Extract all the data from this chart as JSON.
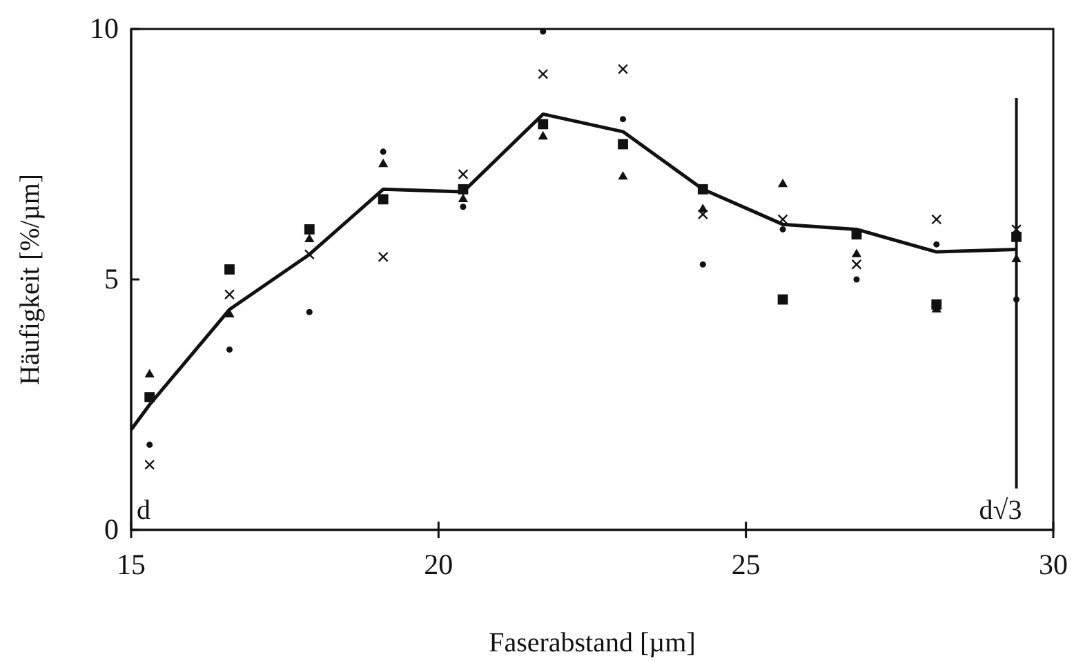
{
  "chart_data": {
    "type": "scatter",
    "xlabel": "Faserabstand [µm]",
    "ylabel": "Häufigkeit [%/µm]",
    "xlim": [
      15,
      30
    ],
    "xticks": [
      15,
      20,
      25,
      30
    ],
    "ylim": [
      0,
      10
    ],
    "yticks": [
      0,
      5,
      10
    ],
    "grid": false,
    "x": [
      15.3,
      16.6,
      17.9,
      19.1,
      20.4,
      21.7,
      23.0,
      24.3,
      25.6,
      26.8,
      28.1,
      29.4
    ],
    "series": [
      {
        "type": "line",
        "color": "#111111",
        "marker": "none",
        "line_style": "solid",
        "x": [
          15,
          15.3,
          16.6,
          17.9,
          19.1,
          20.4,
          21.7,
          23.0,
          24.3,
          25.6,
          26.8,
          28.1,
          29.4
        ],
        "values": [
          2.0,
          2.5,
          4.4,
          5.5,
          6.8,
          6.75,
          8.3,
          7.95,
          6.8,
          6.1,
          6.0,
          5.55,
          5.6
        ]
      },
      {
        "color": "#111111",
        "marker": "square",
        "values": [
          2.65,
          5.2,
          6.0,
          6.6,
          6.8,
          8.1,
          7.7,
          6.8,
          4.6,
          5.9,
          4.5,
          5.85
        ]
      },
      {
        "color": "#111111",
        "marker": "circle",
        "values": [
          1.7,
          3.6,
          4.35,
          7.55,
          6.45,
          9.95,
          8.2,
          5.3,
          6.0,
          5.0,
          5.7,
          4.6
        ]
      },
      {
        "color": "#111111",
        "marker": "triangle",
        "values": [
          3.1,
          4.3,
          5.8,
          7.3,
          6.6,
          7.85,
          7.05,
          6.4,
          6.9,
          5.5,
          4.4,
          5.4
        ]
      },
      {
        "color": "#111111",
        "marker": "cross",
        "values": [
          1.3,
          4.7,
          5.5,
          5.45,
          7.1,
          9.1,
          9.2,
          6.3,
          6.2,
          5.3,
          6.2,
          6.0
        ]
      }
    ],
    "ref_lines": [
      {
        "axis": "x",
        "value": 29.4,
        "label": "d√3",
        "color": "#111111"
      }
    ],
    "annotations": [
      "d"
    ]
  }
}
